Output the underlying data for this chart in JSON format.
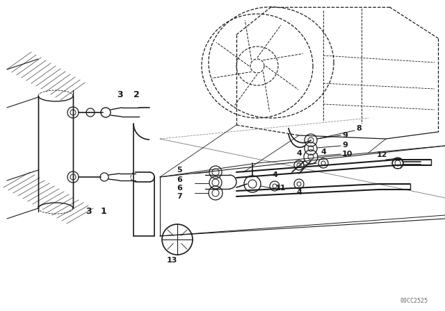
{
  "background_color": "#ffffff",
  "line_color": "#1a1a1a",
  "watermark": "00CC2525",
  "figsize": [
    6.4,
    4.48
  ],
  "dpi": 100
}
